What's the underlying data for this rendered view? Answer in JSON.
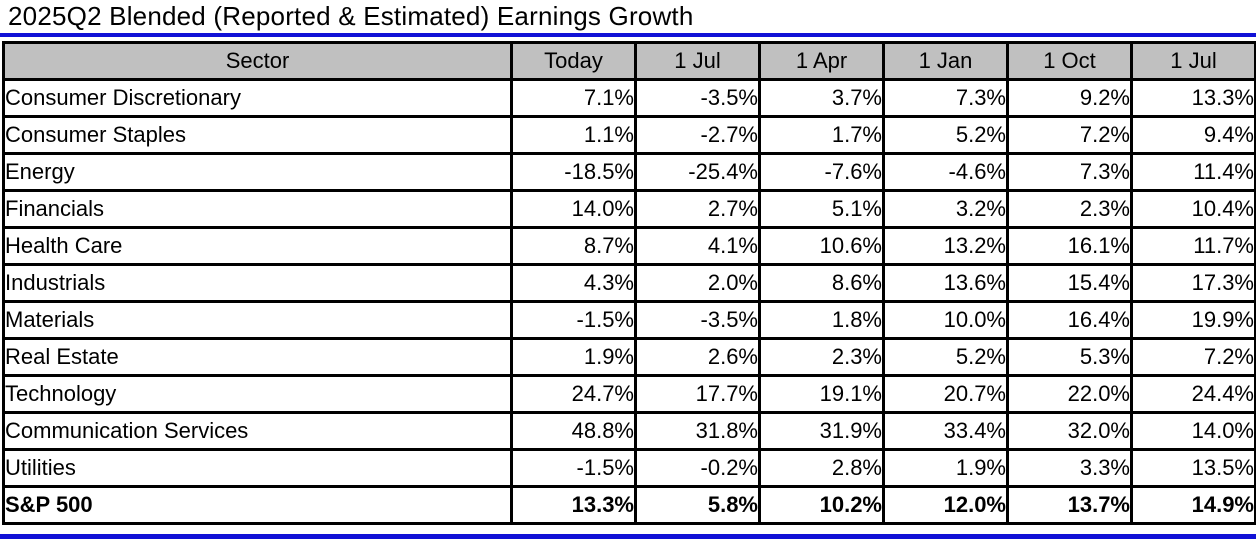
{
  "title": "2025Q2 Blended (Reported & Estimated) Earnings Growth",
  "colors": {
    "header_bg": "#c0c0c0",
    "border": "#000000",
    "rule_blue": "#1111d6"
  },
  "table": {
    "columns": [
      "Sector",
      "Today",
      "1 Jul",
      "1 Apr",
      "1 Jan",
      "1 Oct",
      "1 Jul"
    ],
    "rows": [
      {
        "sector": "Consumer Discretionary",
        "values": [
          "7.1%",
          "-3.5%",
          "3.7%",
          "7.3%",
          "9.2%",
          "13.3%"
        ],
        "bold": false
      },
      {
        "sector": "Consumer Staples",
        "values": [
          "1.1%",
          "-2.7%",
          "1.7%",
          "5.2%",
          "7.2%",
          "9.4%"
        ],
        "bold": false
      },
      {
        "sector": "Energy",
        "values": [
          "-18.5%",
          "-25.4%",
          "-7.6%",
          "-4.6%",
          "7.3%",
          "11.4%"
        ],
        "bold": false
      },
      {
        "sector": "Financials",
        "values": [
          "14.0%",
          "2.7%",
          "5.1%",
          "3.2%",
          "2.3%",
          "10.4%"
        ],
        "bold": false
      },
      {
        "sector": "Health Care",
        "values": [
          "8.7%",
          "4.1%",
          "10.6%",
          "13.2%",
          "16.1%",
          "11.7%"
        ],
        "bold": false
      },
      {
        "sector": "Industrials",
        "values": [
          "4.3%",
          "2.0%",
          "8.6%",
          "13.6%",
          "15.4%",
          "17.3%"
        ],
        "bold": false
      },
      {
        "sector": "Materials",
        "values": [
          "-1.5%",
          "-3.5%",
          "1.8%",
          "10.0%",
          "16.4%",
          "19.9%"
        ],
        "bold": false
      },
      {
        "sector": "Real Estate",
        "values": [
          "1.9%",
          "2.6%",
          "2.3%",
          "5.2%",
          "5.3%",
          "7.2%"
        ],
        "bold": false
      },
      {
        "sector": "Technology",
        "values": [
          "24.7%",
          "17.7%",
          "19.1%",
          "20.7%",
          "22.0%",
          "24.4%"
        ],
        "bold": false
      },
      {
        "sector": "Communication Services",
        "values": [
          "48.8%",
          "31.8%",
          "31.9%",
          "33.4%",
          "32.0%",
          "14.0%"
        ],
        "bold": false
      },
      {
        "sector": "Utilities",
        "values": [
          "-1.5%",
          "-0.2%",
          "2.8%",
          "1.9%",
          "3.3%",
          "13.5%"
        ],
        "bold": false
      },
      {
        "sector": "S&P 500",
        "values": [
          "13.3%",
          "5.8%",
          "10.2%",
          "12.0%",
          "13.7%",
          "14.9%"
        ],
        "bold": true
      }
    ]
  },
  "chart_data": {
    "type": "table",
    "title": "2025Q2 Blended (Reported & Estimated) Earnings Growth",
    "columns": [
      "Sector",
      "Today",
      "1 Jul",
      "1 Apr",
      "1 Jan",
      "1 Oct",
      "1 Jul"
    ],
    "rows": [
      [
        "Consumer Discretionary",
        7.1,
        -3.5,
        3.7,
        7.3,
        9.2,
        13.3
      ],
      [
        "Consumer Staples",
        1.1,
        -2.7,
        1.7,
        5.2,
        7.2,
        9.4
      ],
      [
        "Energy",
        -18.5,
        -25.4,
        -7.6,
        -4.6,
        7.3,
        11.4
      ],
      [
        "Financials",
        14.0,
        2.7,
        5.1,
        3.2,
        2.3,
        10.4
      ],
      [
        "Health Care",
        8.7,
        4.1,
        10.6,
        13.2,
        16.1,
        11.7
      ],
      [
        "Industrials",
        4.3,
        2.0,
        8.6,
        13.6,
        15.4,
        17.3
      ],
      [
        "Materials",
        -1.5,
        -3.5,
        1.8,
        10.0,
        16.4,
        19.9
      ],
      [
        "Real Estate",
        1.9,
        2.6,
        2.3,
        5.2,
        5.3,
        7.2
      ],
      [
        "Technology",
        24.7,
        17.7,
        19.1,
        20.7,
        22.0,
        24.4
      ],
      [
        "Communication Services",
        48.8,
        31.8,
        31.9,
        33.4,
        32.0,
        14.0
      ],
      [
        "Utilities",
        -1.5,
        -0.2,
        2.8,
        1.9,
        3.3,
        13.5
      ],
      [
        "S&P 500",
        13.3,
        5.8,
        10.2,
        12.0,
        13.7,
        14.9
      ]
    ],
    "units": "percent",
    "notes": "Values are year-over-year earnings growth percentages by sector at successive estimate dates; grid on; header row shaded gray; final S&P 500 row bold."
  }
}
